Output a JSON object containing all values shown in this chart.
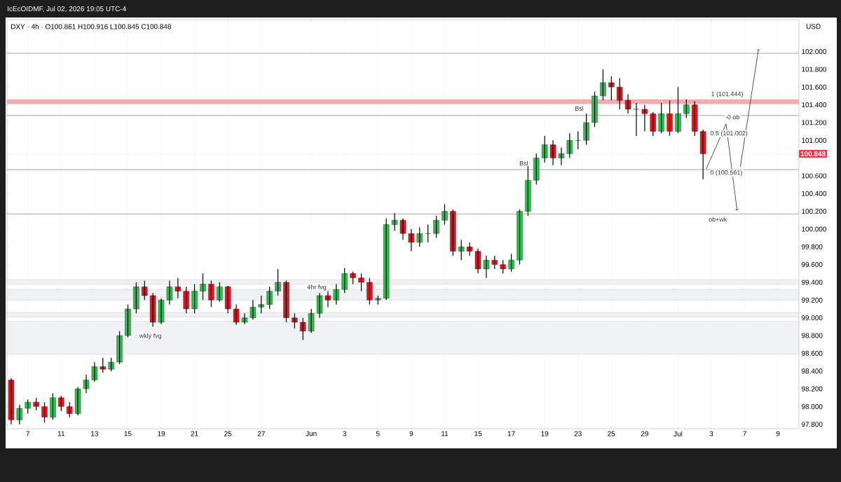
{
  "chart_data": {
    "type": "candlestick",
    "title": "DXY · 4h · O100.861  H100.916  L100.845  C100.848",
    "subtitle": "IcEcOIDMF, Jul 02, 2026 19:05 UTC-4",
    "ylabel": "USD",
    "categories": [
      null,
      null,
      "7",
      null,
      null,
      null,
      "11",
      null,
      null,
      null,
      "13",
      null,
      null,
      null,
      "15",
      null,
      null,
      null,
      "19",
      null,
      null,
      null,
      "21",
      null,
      null,
      null,
      "25",
      null,
      null,
      null,
      "27",
      null,
      null,
      null,
      null,
      null,
      "Jun",
      null,
      null,
      null,
      "3",
      null,
      null,
      null,
      "5",
      null,
      null,
      null,
      "9",
      null,
      null,
      null,
      "11",
      null,
      null,
      null,
      "15",
      null,
      null,
      null,
      "17",
      null,
      null,
      null,
      "19",
      null,
      null,
      null,
      "23",
      null,
      null,
      null,
      "25",
      null,
      null,
      null,
      "29",
      null,
      null,
      null,
      "Jul",
      null,
      null,
      null,
      "3",
      null,
      null,
      null,
      "7",
      null,
      null,
      null,
      "9",
      null,
      null
    ],
    "ohlc": [
      [
        98.3,
        98.32,
        97.8,
        97.85
      ],
      [
        97.85,
        98.02,
        97.8,
        97.98
      ],
      [
        97.98,
        98.08,
        97.92,
        98.05
      ],
      [
        98.05,
        98.1,
        97.96,
        98.0
      ],
      [
        98.0,
        98.05,
        97.82,
        97.88
      ],
      [
        97.88,
        98.15,
        97.85,
        98.1
      ],
      [
        98.1,
        98.12,
        97.95,
        98.0
      ],
      [
        98.0,
        98.05,
        97.88,
        97.92
      ],
      [
        97.92,
        98.22,
        97.9,
        98.2
      ],
      [
        98.2,
        98.36,
        98.15,
        98.3
      ],
      [
        98.3,
        98.5,
        98.28,
        98.45
      ],
      [
        98.45,
        98.55,
        98.38,
        98.42
      ],
      [
        98.42,
        98.55,
        98.4,
        98.5
      ],
      [
        98.5,
        98.85,
        98.48,
        98.8
      ],
      [
        98.8,
        99.15,
        98.78,
        99.1
      ],
      [
        99.1,
        99.4,
        99.05,
        99.35
      ],
      [
        99.35,
        99.42,
        99.2,
        99.25
      ],
      [
        99.25,
        99.28,
        98.9,
        98.95
      ],
      [
        98.95,
        99.22,
        98.93,
        99.2
      ],
      [
        99.2,
        99.42,
        99.15,
        99.35
      ],
      [
        99.35,
        99.45,
        99.22,
        99.3
      ],
      [
        99.3,
        99.35,
        99.05,
        99.1
      ],
      [
        99.1,
        99.38,
        99.05,
        99.3
      ],
      [
        99.3,
        99.5,
        99.2,
        99.38
      ],
      [
        99.38,
        99.42,
        99.12,
        99.2
      ],
      [
        99.2,
        99.4,
        99.18,
        99.35
      ],
      [
        99.35,
        99.36,
        99.05,
        99.1
      ],
      [
        99.1,
        99.15,
        98.92,
        98.95
      ],
      [
        98.95,
        99.05,
        98.93,
        99.0
      ],
      [
        99.0,
        99.2,
        98.98,
        99.12
      ],
      [
        99.12,
        99.25,
        99.05,
        99.15
      ],
      [
        99.15,
        99.35,
        99.1,
        99.3
      ],
      [
        99.3,
        99.55,
        99.25,
        99.4
      ],
      [
        99.4,
        99.42,
        98.95,
        99.0
      ],
      [
        99.0,
        99.05,
        98.88,
        98.95
      ],
      [
        98.95,
        99.0,
        98.75,
        98.85
      ],
      [
        98.85,
        99.1,
        98.83,
        99.05
      ],
      [
        99.05,
        99.28,
        99.0,
        99.25
      ],
      [
        99.25,
        99.3,
        99.12,
        99.2
      ],
      [
        99.2,
        99.38,
        99.15,
        99.32
      ],
      [
        99.32,
        99.56,
        99.28,
        99.5
      ],
      [
        99.5,
        99.52,
        99.38,
        99.45
      ],
      [
        99.45,
        99.5,
        99.3,
        99.4
      ],
      [
        99.4,
        99.45,
        99.15,
        99.2
      ],
      [
        99.2,
        99.25,
        99.15,
        99.22
      ],
      [
        99.22,
        100.12,
        99.2,
        100.05
      ],
      [
        100.05,
        100.18,
        99.98,
        100.1
      ],
      [
        100.1,
        100.12,
        99.88,
        99.95
      ],
      [
        99.95,
        100.0,
        99.75,
        99.85
      ],
      [
        99.85,
        100.02,
        99.8,
        99.95
      ],
      [
        99.95,
        100.05,
        99.85,
        99.95
      ],
      [
        99.95,
        100.15,
        99.9,
        100.1
      ],
      [
        100.1,
        100.28,
        100.05,
        100.2
      ],
      [
        100.2,
        100.22,
        99.7,
        99.75
      ],
      [
        99.75,
        99.88,
        99.65,
        99.8
      ],
      [
        99.8,
        99.85,
        99.7,
        99.75
      ],
      [
        99.75,
        99.78,
        99.5,
        99.55
      ],
      [
        99.55,
        99.7,
        99.45,
        99.65
      ],
      [
        99.65,
        99.7,
        99.55,
        99.6
      ],
      [
        99.6,
        99.65,
        99.5,
        99.55
      ],
      [
        99.55,
        99.72,
        99.52,
        99.65
      ],
      [
        99.65,
        100.22,
        99.6,
        100.2
      ],
      [
        100.2,
        100.75,
        100.15,
        100.55
      ],
      [
        100.55,
        100.85,
        100.5,
        100.8
      ],
      [
        100.8,
        101.05,
        100.75,
        100.95
      ],
      [
        100.95,
        101.0,
        100.72,
        100.8
      ],
      [
        100.8,
        100.92,
        100.72,
        100.85
      ],
      [
        100.85,
        101.08,
        100.8,
        101.0
      ],
      [
        101.0,
        101.1,
        100.9,
        101.0
      ],
      [
        101.0,
        101.3,
        100.95,
        101.2
      ],
      [
        101.2,
        101.55,
        101.15,
        101.5
      ],
      [
        101.5,
        101.8,
        101.45,
        101.65
      ],
      [
        101.65,
        101.72,
        101.45,
        101.6
      ],
      [
        101.6,
        101.7,
        101.35,
        101.45
      ],
      [
        101.45,
        101.52,
        101.3,
        101.35
      ],
      [
        101.35,
        101.42,
        101.05,
        101.35
      ],
      [
        101.35,
        101.4,
        101.1,
        101.3
      ],
      [
        101.3,
        101.32,
        101.05,
        101.1
      ],
      [
        101.1,
        101.42,
        101.08,
        101.3
      ],
      [
        101.3,
        101.45,
        101.05,
        101.1
      ],
      [
        101.1,
        101.6,
        101.08,
        101.3
      ],
      [
        101.3,
        101.46,
        101.25,
        101.4
      ],
      [
        101.4,
        101.44,
        101.05,
        101.1
      ],
      [
        101.1,
        101.12,
        100.561,
        100.848
      ],
      null,
      null,
      null,
      null,
      null,
      null,
      null,
      null,
      null,
      null,
      null
    ],
    "ylim": [
      97.75,
      102.36
    ],
    "yticks": [
      {
        "value": 97.8,
        "label": "97.800"
      },
      {
        "value": 98.0,
        "label": "98.000"
      },
      {
        "value": 98.2,
        "label": "98.200"
      },
      {
        "value": 98.4,
        "label": "98.400"
      },
      {
        "value": 98.6,
        "label": "98.600"
      },
      {
        "value": 98.8,
        "label": "98.800"
      },
      {
        "value": 99.0,
        "label": "99.000"
      },
      {
        "value": 99.2,
        "label": "99.200"
      },
      {
        "value": 99.4,
        "label": "99.400"
      },
      {
        "value": 99.6,
        "label": "99.600"
      },
      {
        "value": 99.8,
        "label": "99.800"
      },
      {
        "value": 100.0,
        "label": "100.000"
      },
      {
        "value": 100.2,
        "label": "100.200"
      },
      {
        "value": 100.4,
        "label": "100.400"
      },
      {
        "value": 100.6,
        "label": "100.600"
      },
      {
        "value": 100.8,
        "label": null
      },
      {
        "value": 101.0,
        "label": "101.000"
      },
      {
        "value": 101.2,
        "label": "101.200"
      },
      {
        "value": 101.4,
        "label": "101.400"
      },
      {
        "value": 101.6,
        "label": "101.600"
      },
      {
        "value": 101.8,
        "label": "101.800"
      },
      {
        "value": 102.0,
        "label": "102.000"
      }
    ],
    "grid": "x",
    "ref_lines": [
      {
        "axis": "y",
        "value": 101.98,
        "color": "#131722"
      },
      {
        "axis": "y",
        "value": 101.28,
        "color": "#131722"
      },
      {
        "axis": "y",
        "value": 100.67,
        "color": "#131722"
      },
      {
        "axis": "y",
        "value": 100.17,
        "color": "#131722"
      },
      {
        "axis": "y",
        "value": 100.848,
        "label": "100.848",
        "color": "#f23645",
        "line_style": "dotted"
      }
    ],
    "bands": [
      {
        "axis": "y",
        "from": 99.2,
        "to": 99.32,
        "color": "#f0f1f4"
      },
      {
        "axis": "y",
        "from": 98.59,
        "to": 98.96,
        "color": "#f0f1f4"
      },
      {
        "axis": "y",
        "from": 99.38,
        "to": 99.43,
        "color": "#f0f1f4"
      },
      {
        "axis": "y",
        "from": 99.01,
        "to": 99.06,
        "color": "#f0f1f4"
      },
      {
        "axis": "y",
        "from": 101.41,
        "to": 101.46,
        "color": "#f7a9ae"
      }
    ],
    "annotations": [
      "Bsl",
      "Bsl",
      "-0 ob",
      "ob+wk",
      "4hr fvg",
      "wkly fvg",
      "1 (101.444)",
      "0.5 (101.002)",
      "0 (100.561)"
    ]
  }
}
